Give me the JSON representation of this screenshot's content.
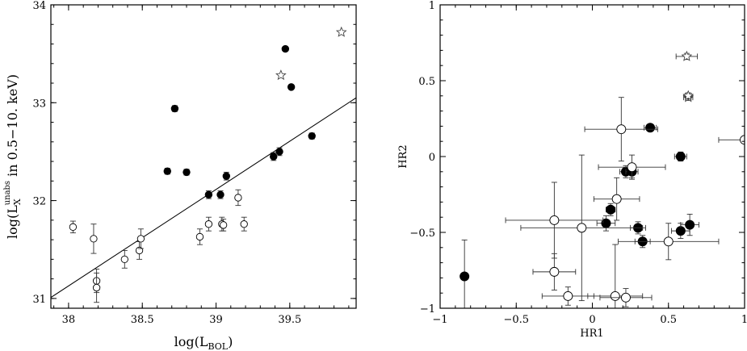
{
  "chart_data": [
    {
      "type": "scatter",
      "title": "",
      "xlabel": "log(L_BOL)",
      "ylabel": "log(L_X^unabs in 0.5-10. keV)",
      "xlim": [
        37.88,
        39.95
      ],
      "ylim": [
        30.9,
        34.0
      ],
      "xticks": [
        "38",
        "38.5",
        "39",
        "39.5"
      ],
      "yticks": [
        "31",
        "32",
        "33",
        "34"
      ],
      "grid": false,
      "legend": "none",
      "fit_line": {
        "x": [
          37.88,
          39.95
        ],
        "y": [
          31.01,
          33.05
        ]
      },
      "series": [
        {
          "marker": "filled",
          "points": [
            {
              "x": 38.67,
              "y": 32.3,
              "yerr": 0.03
            },
            {
              "x": 38.72,
              "y": 32.94,
              "yerr": 0.03
            },
            {
              "x": 38.8,
              "y": 32.29,
              "yerr": 0.03
            },
            {
              "x": 38.95,
              "y": 32.06,
              "yerr": 0.04
            },
            {
              "x": 39.03,
              "y": 32.06,
              "yerr": 0.04
            },
            {
              "x": 39.07,
              "y": 32.25,
              "yerr": 0.04
            },
            {
              "x": 39.39,
              "y": 32.45,
              "yerr": 0.04
            },
            {
              "x": 39.43,
              "y": 32.5,
              "yerr": 0.04
            },
            {
              "x": 39.47,
              "y": 33.55,
              "yerr": 0.02
            },
            {
              "x": 39.51,
              "y": 33.16,
              "yerr": 0.02
            },
            {
              "x": 39.65,
              "y": 32.66,
              "yerr": 0.03
            }
          ]
        },
        {
          "marker": "open",
          "points": [
            {
              "x": 38.03,
              "y": 31.73,
              "yerr": 0.06
            },
            {
              "x": 38.17,
              "y": 31.61,
              "yerr": 0.15
            },
            {
              "x": 38.19,
              "y": 31.18,
              "yerr": 0.12
            },
            {
              "x": 38.19,
              "y": 31.11,
              "yerr": 0.15
            },
            {
              "x": 38.38,
              "y": 31.4,
              "yerr": 0.09
            },
            {
              "x": 38.48,
              "y": 31.49,
              "yerr": 0.09
            },
            {
              "x": 38.49,
              "y": 31.61,
              "yerr": 0.1
            },
            {
              "x": 38.89,
              "y": 31.63,
              "yerr": 0.08
            },
            {
              "x": 38.95,
              "y": 31.76,
              "yerr": 0.07
            },
            {
              "x": 39.04,
              "y": 31.76,
              "yerr": 0.07
            },
            {
              "x": 39.05,
              "y": 31.75,
              "yerr": 0.06
            },
            {
              "x": 39.15,
              "y": 32.03,
              "yerr": 0.08
            },
            {
              "x": 39.19,
              "y": 31.76,
              "yerr": 0.07
            }
          ]
        },
        {
          "marker": "star",
          "points": [
            {
              "x": 39.44,
              "y": 33.28,
              "yerr": 0
            },
            {
              "x": 39.85,
              "y": 33.72,
              "yerr": 0
            }
          ]
        }
      ]
    },
    {
      "type": "scatter",
      "title": "",
      "xlabel": "HR1",
      "ylabel": "HR2",
      "xlim": [
        -1,
        1
      ],
      "ylim": [
        -1,
        1
      ],
      "xticks": [
        "−1",
        "−0.5",
        "0",
        "0.5",
        "1"
      ],
      "yticks": [
        "−1",
        "−0.5",
        "0",
        "0.5",
        "1"
      ],
      "grid": false,
      "legend": "none",
      "series": [
        {
          "marker": "filled",
          "points": [
            {
              "x": -0.84,
              "y": -0.79,
              "xerr": 0.02,
              "yerr": 0.24
            },
            {
              "x": 0.09,
              "y": -0.44,
              "xerr": 0.06,
              "yerr": 0.05
            },
            {
              "x": 0.12,
              "y": -0.35,
              "xerr": 0.03,
              "yerr": 0.04
            },
            {
              "x": 0.22,
              "y": -0.1,
              "xerr": 0.04,
              "yerr": 0.04
            },
            {
              "x": 0.26,
              "y": -0.1,
              "xerr": 0.04,
              "yerr": 0.04
            },
            {
              "x": 0.3,
              "y": -0.47,
              "xerr": 0.05,
              "yerr": 0.04
            },
            {
              "x": 0.33,
              "y": -0.56,
              "xerr": 0.05,
              "yerr": 0.04
            },
            {
              "x": 0.38,
              "y": 0.19,
              "xerr": 0.04,
              "yerr": 0.02
            },
            {
              "x": 0.58,
              "y": 0.0,
              "xerr": 0.04,
              "yerr": 0.03
            },
            {
              "x": 0.58,
              "y": -0.49,
              "xerr": 0.06,
              "yerr": 0.05
            },
            {
              "x": 0.64,
              "y": -0.45,
              "xerr": 0.06,
              "yerr": 0.07
            }
          ]
        },
        {
          "marker": "open",
          "points": [
            {
              "x": -0.25,
              "y": -0.42,
              "xerr": 0.32,
              "yerr": 0.25
            },
            {
              "x": -0.25,
              "y": -0.76,
              "xerr": 0.14,
              "yerr": 0.12
            },
            {
              "x": -0.16,
              "y": -0.92,
              "xerr": 0.17,
              "yerr": 0.06
            },
            {
              "x": -0.07,
              "y": -0.47,
              "xerr": 0.4,
              "yerr": 0.48
            },
            {
              "x": 0.16,
              "y": -0.28,
              "xerr": 0.15,
              "yerr": 0.14
            },
            {
              "x": 0.15,
              "y": -0.92,
              "xerr": 0.18,
              "yerr": 0.34
            },
            {
              "x": 0.19,
              "y": 0.18,
              "xerr": 0.24,
              "yerr": 0.21
            },
            {
              "x": 0.22,
              "y": -0.93,
              "xerr": 0.17,
              "yerr": 0.06
            },
            {
              "x": 0.26,
              "y": -0.07,
              "xerr": 0.22,
              "yerr": 0.08
            },
            {
              "x": 0.5,
              "y": -0.56,
              "xerr": 0.33,
              "yerr": 0.12
            },
            {
              "x": 1.0,
              "y": 0.11,
              "xerr": 0.17,
              "yerr": 0.02
            }
          ]
        },
        {
          "marker": "star",
          "points": [
            {
              "x": 0.62,
              "y": 0.66,
              "xerr": 0.07,
              "yerr": 0.02
            },
            {
              "x": 0.63,
              "y": 0.39,
              "xerr": 0.03,
              "yerr": 0.02
            },
            {
              "x": 0.63,
              "y": 0.4,
              "xerr": 0.02,
              "yerr": 0.02
            }
          ]
        }
      ]
    }
  ]
}
